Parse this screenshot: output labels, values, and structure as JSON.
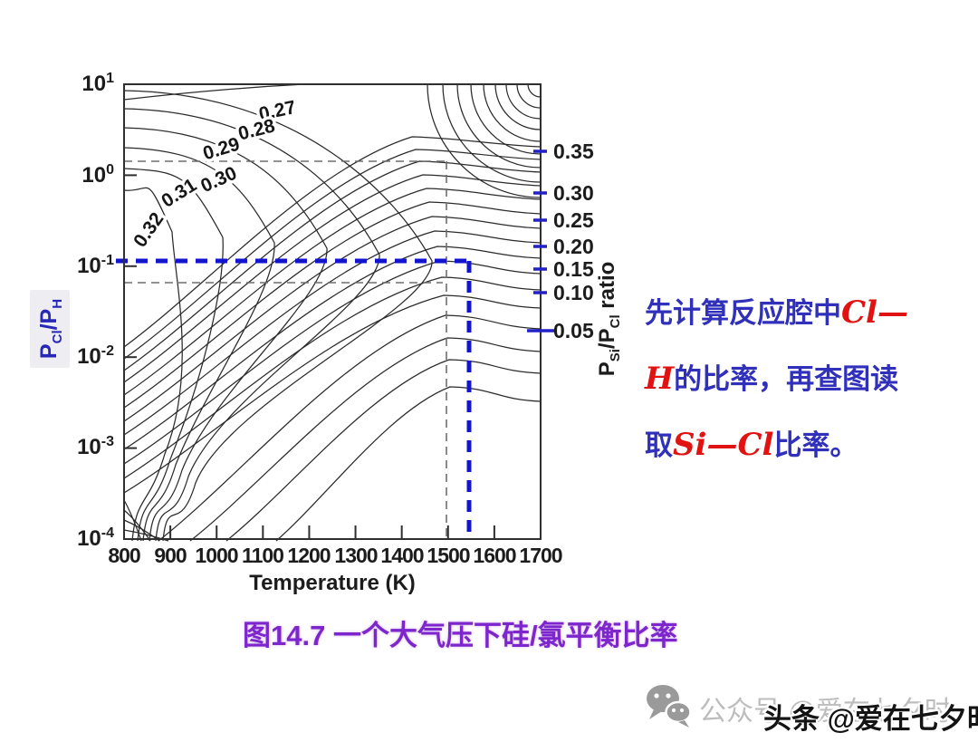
{
  "chart": {
    "y_axis": {
      "label_parts": {
        "base1": "P",
        "sub1": "Cl",
        "base2": "/P",
        "sub2": "H"
      },
      "ticks": [
        {
          "base": "10",
          "exp": "1"
        },
        {
          "base": "10",
          "exp": "0"
        },
        {
          "base": "10",
          "exp": "-1"
        },
        {
          "base": "10",
          "exp": "-2"
        },
        {
          "base": "10",
          "exp": "-3"
        },
        {
          "base": "10",
          "exp": "-4"
        }
      ]
    },
    "x_axis": {
      "label": "Temperature (K)"
    },
    "right_axis": {
      "label_parts": {
        "base1": "P",
        "sub1": "Si",
        "base2": "/P",
        "sub2": "Cl",
        "rest": " ratio"
      },
      "ticks": [
        "0.35",
        "0.30",
        "0.25",
        "0.20",
        "0.15",
        "0.10",
        "0.05"
      ]
    },
    "contour_labels": [
      "0.27",
      "0.28",
      "0.29",
      "0.30",
      "0.31",
      "0.32"
    ]
  },
  "chart_data": {
    "type": "contour",
    "title": "图14.7 一个大气压下硅/氯平衡比率",
    "xlabel": "Temperature (K)",
    "xlim": [
      800,
      1700
    ],
    "x_ticks": [
      800,
      900,
      1000,
      1100,
      1200,
      1300,
      1400,
      1500,
      1600,
      1700
    ],
    "ylabel": "P_Cl/P_H",
    "y_scale": "log",
    "ylim": [
      0.0001,
      10
    ],
    "y_ticks": [
      10,
      1,
      0.1,
      0.01,
      0.001,
      0.0001
    ],
    "secondary_y_axis": {
      "label": "P_Si/P_Cl ratio",
      "tick_values": [
        0.35,
        0.3,
        0.25,
        0.2,
        0.15,
        0.1,
        0.05
      ]
    },
    "contour_level_values": [
      0.27,
      0.28,
      0.29,
      0.3,
      0.31,
      0.32
    ],
    "grid": false,
    "reading_guides": {
      "blue_dashed": {
        "pcl_ph": 0.11,
        "temperature_K": 1545
      },
      "gray_dashed": {
        "horizontal_pcl_ph": [
          1.4,
          0.07
        ],
        "vertical_temperature_K": 1495
      }
    }
  },
  "annotation": {
    "lines": [
      {
        "parts": [
          {
            "t": "先计算反应腔中"
          },
          {
            "t": "Cl—"
          }
        ]
      },
      {
        "parts": [
          {
            "t": "H"
          },
          {
            "t": "的比率，再查图读"
          }
        ]
      },
      {
        "parts": [
          {
            "t": "取"
          },
          {
            "t": "Si—Cl"
          },
          {
            "t": "比率。"
          }
        ]
      }
    ]
  },
  "slide": {
    "caption": "图14.7 一个大气压下硅/氯平衡比率"
  },
  "watermark": {
    "icon": "wechat-icon",
    "gray_text": "公众号 @爱在七夕时",
    "black_text": "头条 @爱在七夕时"
  }
}
